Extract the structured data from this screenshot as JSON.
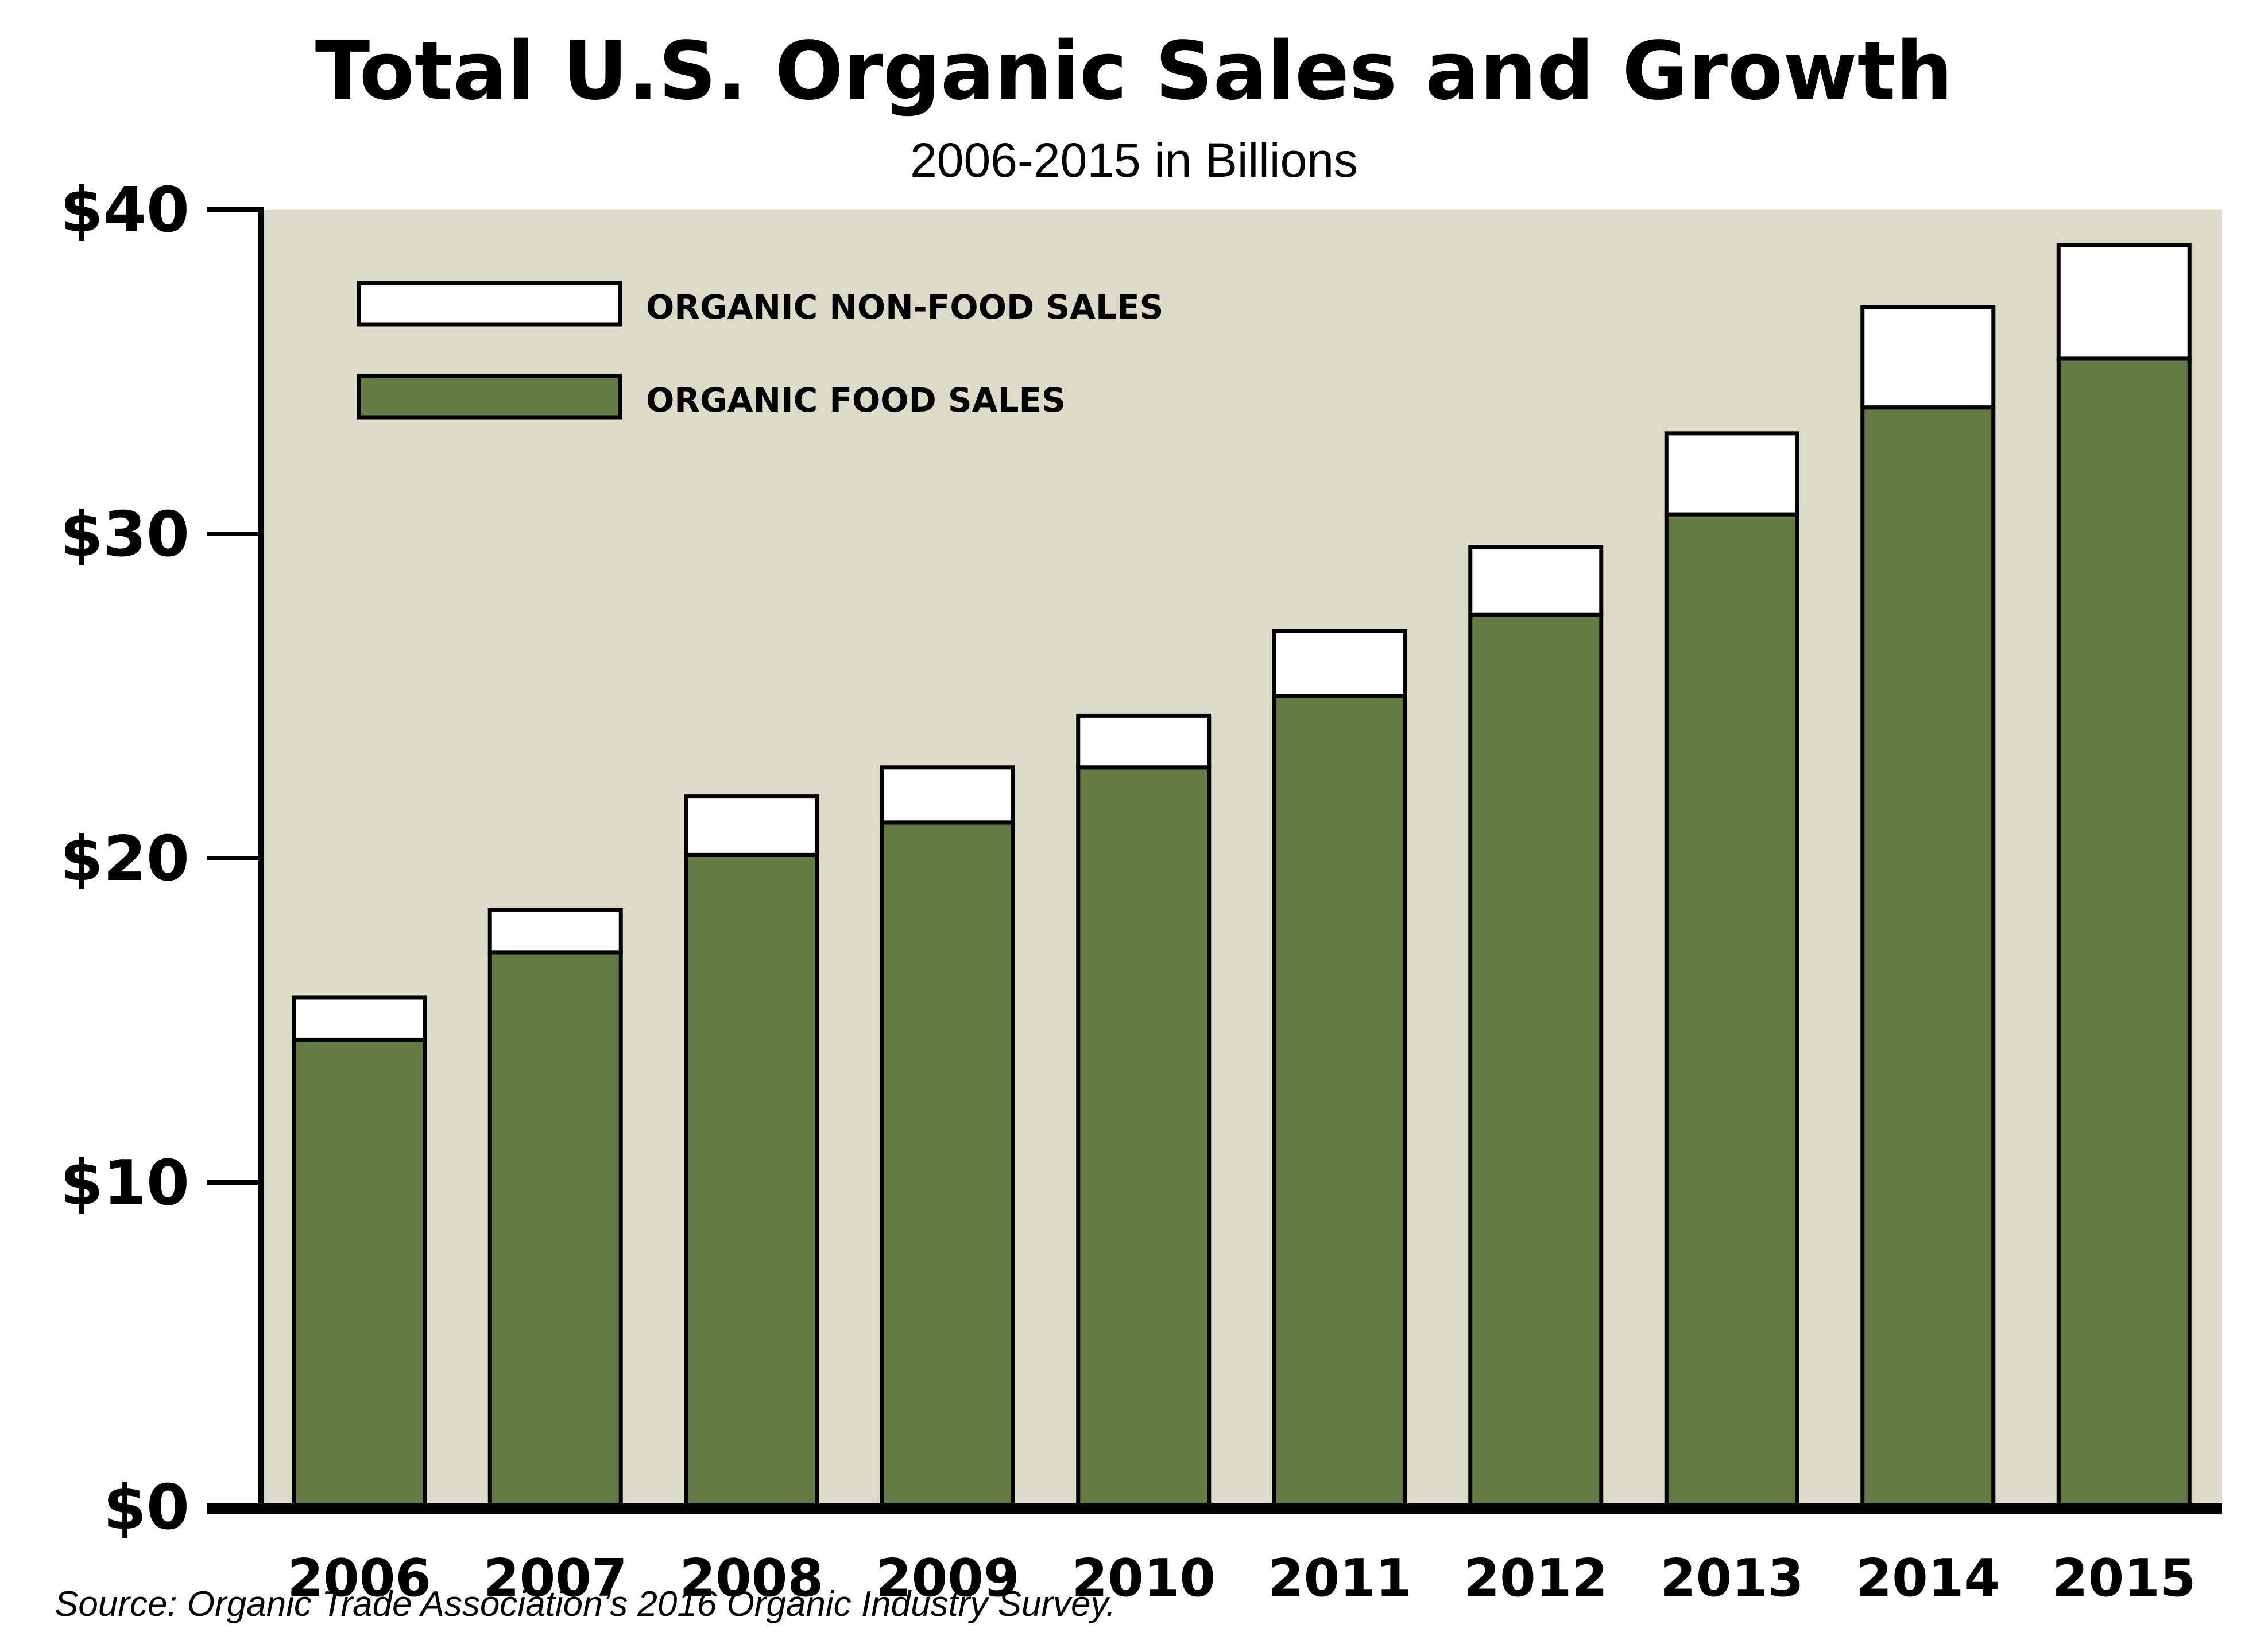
{
  "chart_data": {
    "type": "bar",
    "stacked": true,
    "title": "Total U.S. Organic Sales and Growth",
    "subtitle": "2006-2015 in Billions",
    "categories": [
      "2006",
      "2007",
      "2008",
      "2009",
      "2010",
      "2011",
      "2012",
      "2013",
      "2014",
      "2015"
    ],
    "series": [
      {
        "name": "ORGANIC FOOD SALES",
        "color": "#657a44",
        "values": [
          14.4,
          17.1,
          20.1,
          21.1,
          22.8,
          25.0,
          27.5,
          30.6,
          33.9,
          35.4
        ]
      },
      {
        "name": "ORGANIC NON-FOOD SALES",
        "color": "#ffffff",
        "values": [
          1.3,
          1.3,
          1.8,
          1.7,
          1.6,
          2.0,
          2.1,
          2.5,
          3.1,
          3.5
        ]
      }
    ],
    "legend": {
      "placement": "top-left",
      "order": [
        "ORGANIC NON-FOOD SALES",
        "ORGANIC FOOD SALES"
      ]
    },
    "ylim": [
      0,
      40
    ],
    "yticks": [
      0,
      10,
      20,
      30,
      40
    ],
    "ytick_labels": [
      "$0",
      "$10",
      "$20",
      "$30",
      "$40"
    ],
    "xlabel": "",
    "ylabel": "",
    "grid": false,
    "plot_background": "#dcdbc7",
    "source": "Source: Organic Trade Association’s 2016 Organic Industry Survey."
  }
}
